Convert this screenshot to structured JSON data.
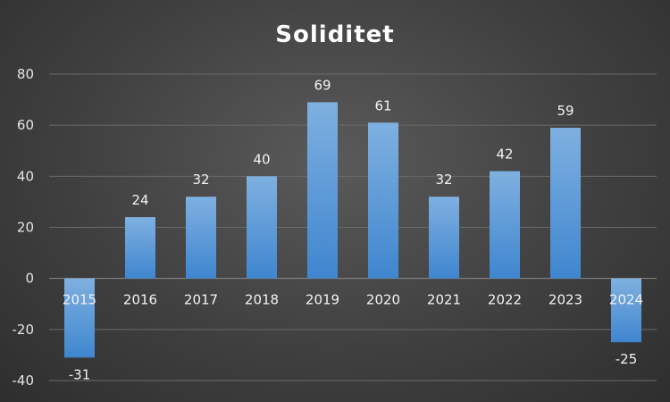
{
  "chart_data": {
    "type": "bar",
    "title": "Soliditet",
    "categories": [
      "2015",
      "2016",
      "2017",
      "2018",
      "2019",
      "2020",
      "2021",
      "2022",
      "2023",
      "2024"
    ],
    "values": [
      -31,
      24,
      32,
      40,
      69,
      61,
      32,
      42,
      59,
      -25
    ],
    "ylim": [
      -40,
      80
    ],
    "yticks": [
      80,
      60,
      40,
      20,
      0,
      -20,
      -40
    ],
    "grid": true,
    "legend": "none",
    "bar_color": "#5b9bd5"
  }
}
